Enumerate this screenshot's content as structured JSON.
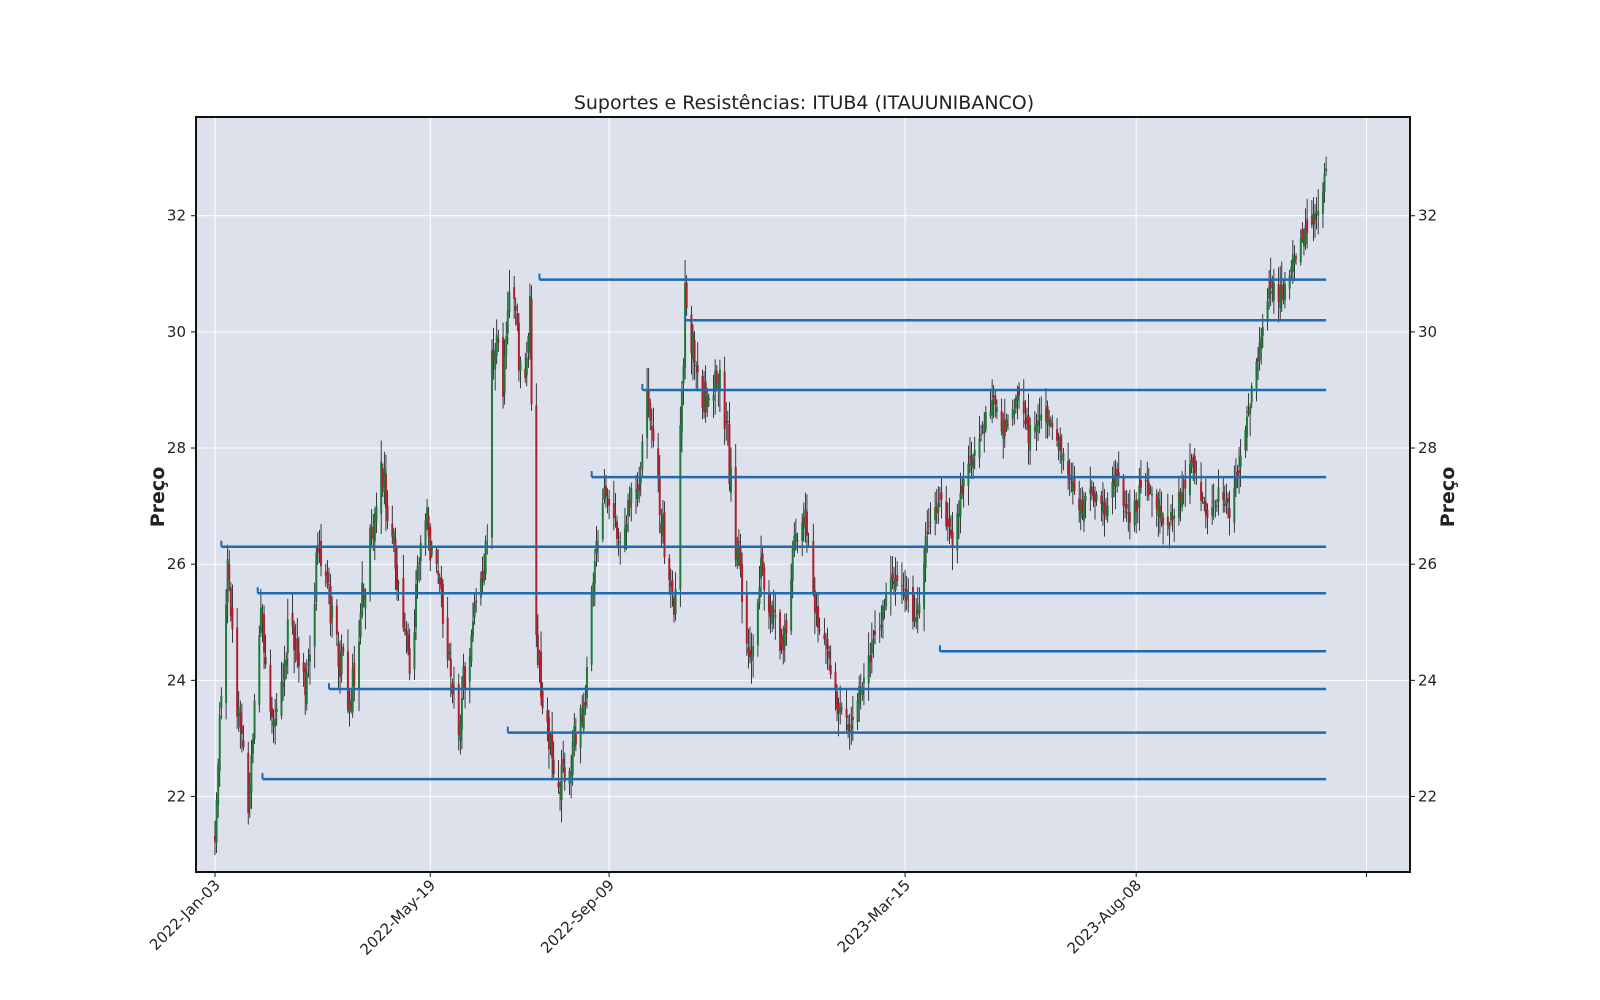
{
  "chart_data": {
    "type": "candlestick",
    "title": "Suportes e Resistências: ITUB4 (ITAUUNIBANCO)",
    "ylabel_left": "Preço",
    "ylabel_right": "Preço",
    "xlabel": "",
    "ylim": [
      20.7,
      33.7
    ],
    "x_range_days": [
      -12,
      755
    ],
    "grid": true,
    "colors": {
      "background": "#dce1ec",
      "grid": "#ffffff",
      "up_candle": "#1f7a3a",
      "down_candle": "#b0202a",
      "wick": "#111111",
      "level_line": "#1f6bb0",
      "frame": "#111111"
    },
    "yticks": [
      22,
      24,
      26,
      28,
      30,
      32
    ],
    "xticks": [
      {
        "date": "2022-01-03",
        "label": "2022-Jan-03"
      },
      {
        "date": "2022-05-19",
        "label": "2022-May-19"
      },
      {
        "date": "2022-09-09",
        "label": "2022-Sep-09"
      },
      {
        "date": "2023-03-15",
        "label": "2023-Mar-15"
      },
      {
        "date": "2023-08-08",
        "label": "2023-Aug-08"
      }
    ],
    "price_path": [
      [
        "2022-01-03",
        21.2
      ],
      [
        "2022-01-07",
        23.7
      ],
      [
        "2022-01-11",
        26.0
      ],
      [
        "2022-01-18",
        23.3
      ],
      [
        "2022-01-24",
        21.8
      ],
      [
        "2022-02-01",
        24.9
      ],
      [
        "2022-02-10",
        23.2
      ],
      [
        "2022-02-20",
        25.1
      ],
      [
        "2022-03-01",
        24.0
      ],
      [
        "2022-03-10",
        26.4
      ],
      [
        "2022-03-20",
        24.7
      ],
      [
        "2022-03-30",
        23.6
      ],
      [
        "2022-04-08",
        25.8
      ],
      [
        "2022-04-18",
        27.6
      ],
      [
        "2022-04-28",
        25.9
      ],
      [
        "2022-05-06",
        24.3
      ],
      [
        "2022-05-15",
        26.9
      ],
      [
        "2022-05-25",
        25.4
      ],
      [
        "2022-06-05",
        23.2
      ],
      [
        "2022-06-14",
        24.9
      ],
      [
        "2022-06-24",
        26.2
      ],
      [
        "2022-06-27",
        29.9
      ],
      [
        "2022-07-04",
        29.2
      ],
      [
        "2022-07-10",
        30.9
      ],
      [
        "2022-07-16",
        28.9
      ],
      [
        "2022-07-21",
        30.6
      ],
      [
        "2022-07-25",
        24.5
      ],
      [
        "2022-07-31",
        23.3
      ],
      [
        "2022-08-08",
        22.1
      ],
      [
        "2022-08-16",
        22.6
      ],
      [
        "2022-08-24",
        23.6
      ],
      [
        "2022-08-30",
        25.6
      ],
      [
        "2022-09-05",
        27.2
      ],
      [
        "2022-09-12",
        26.5
      ],
      [
        "2022-09-20",
        26.9
      ],
      [
        "2022-09-27",
        27.0
      ],
      [
        "2022-10-03",
        28.8
      ],
      [
        "2022-10-09",
        27.6
      ],
      [
        "2022-10-14",
        26.2
      ],
      [
        "2022-10-20",
        24.9
      ],
      [
        "2022-10-27",
        30.6
      ],
      [
        "2022-11-03",
        29.3
      ],
      [
        "2022-11-10",
        28.8
      ],
      [
        "2022-11-16",
        29.4
      ],
      [
        "2022-11-22",
        28.4
      ],
      [
        "2022-11-28",
        26.4
      ],
      [
        "2022-12-02",
        25.6
      ],
      [
        "2022-12-07",
        24.2
      ],
      [
        "2022-12-14",
        26.0
      ],
      [
        "2022-12-22",
        25.1
      ],
      [
        "2022-12-28",
        24.6
      ],
      [
        "2023-01-04",
        26.4
      ],
      [
        "2023-01-11",
        26.8
      ],
      [
        "2023-01-17",
        25.2
      ],
      [
        "2023-01-24",
        24.6
      ],
      [
        "2023-01-31",
        23.6
      ],
      [
        "2023-02-07",
        23.2
      ],
      [
        "2023-02-14",
        23.8
      ],
      [
        "2023-02-21",
        24.4
      ],
      [
        "2023-03-01",
        25.2
      ],
      [
        "2023-03-08",
        25.8
      ],
      [
        "2023-03-15",
        25.5
      ],
      [
        "2023-03-22",
        25.0
      ],
      [
        "2023-03-29",
        26.6
      ],
      [
        "2023-04-06",
        27.1
      ],
      [
        "2023-04-14",
        26.4
      ],
      [
        "2023-04-22",
        27.5
      ],
      [
        "2023-05-01",
        28.2
      ],
      [
        "2023-05-09",
        28.8
      ],
      [
        "2023-05-17",
        28.3
      ],
      [
        "2023-05-25",
        28.9
      ],
      [
        "2023-06-01",
        28.2
      ],
      [
        "2023-06-09",
        28.7
      ],
      [
        "2023-06-17",
        28.4
      ],
      [
        "2023-06-25",
        27.6
      ],
      [
        "2023-07-03",
        26.9
      ],
      [
        "2023-07-11",
        27.3
      ],
      [
        "2023-07-19",
        26.9
      ],
      [
        "2023-07-27",
        27.5
      ],
      [
        "2023-08-04",
        26.7
      ],
      [
        "2023-08-12",
        27.4
      ],
      [
        "2023-08-20",
        27.1
      ],
      [
        "2023-08-28",
        26.6
      ],
      [
        "2023-09-05",
        27.2
      ],
      [
        "2023-09-13",
        27.7
      ],
      [
        "2023-09-21",
        26.8
      ],
      [
        "2023-09-29",
        27.2
      ],
      [
        "2023-10-07",
        26.9
      ],
      [
        "2023-10-15",
        28.2
      ],
      [
        "2023-10-23",
        29.4
      ],
      [
        "2023-10-31",
        30.8
      ],
      [
        "2023-11-08",
        30.6
      ],
      [
        "2023-11-16",
        31.3
      ],
      [
        "2023-11-24",
        31.8
      ],
      [
        "2023-12-01",
        32.0
      ],
      [
        "2023-12-06",
        32.8
      ]
    ],
    "levels": [
      {
        "start": "2022-07-27",
        "price": 30.9
      },
      {
        "start": "2022-10-27",
        "price": 30.2
      },
      {
        "start": "2022-09-30",
        "price": 29.0
      },
      {
        "start": "2022-08-29",
        "price": 27.5
      },
      {
        "start": "2022-01-07",
        "price": 26.3
      },
      {
        "start": "2022-01-30",
        "price": 25.5
      },
      {
        "start": "2023-04-06",
        "price": 24.5
      },
      {
        "start": "2022-03-16",
        "price": 23.85
      },
      {
        "start": "2022-07-07",
        "price": 23.1
      },
      {
        "start": "2022-02-02",
        "price": 22.3
      }
    ],
    "last_date": "2023-12-06"
  }
}
